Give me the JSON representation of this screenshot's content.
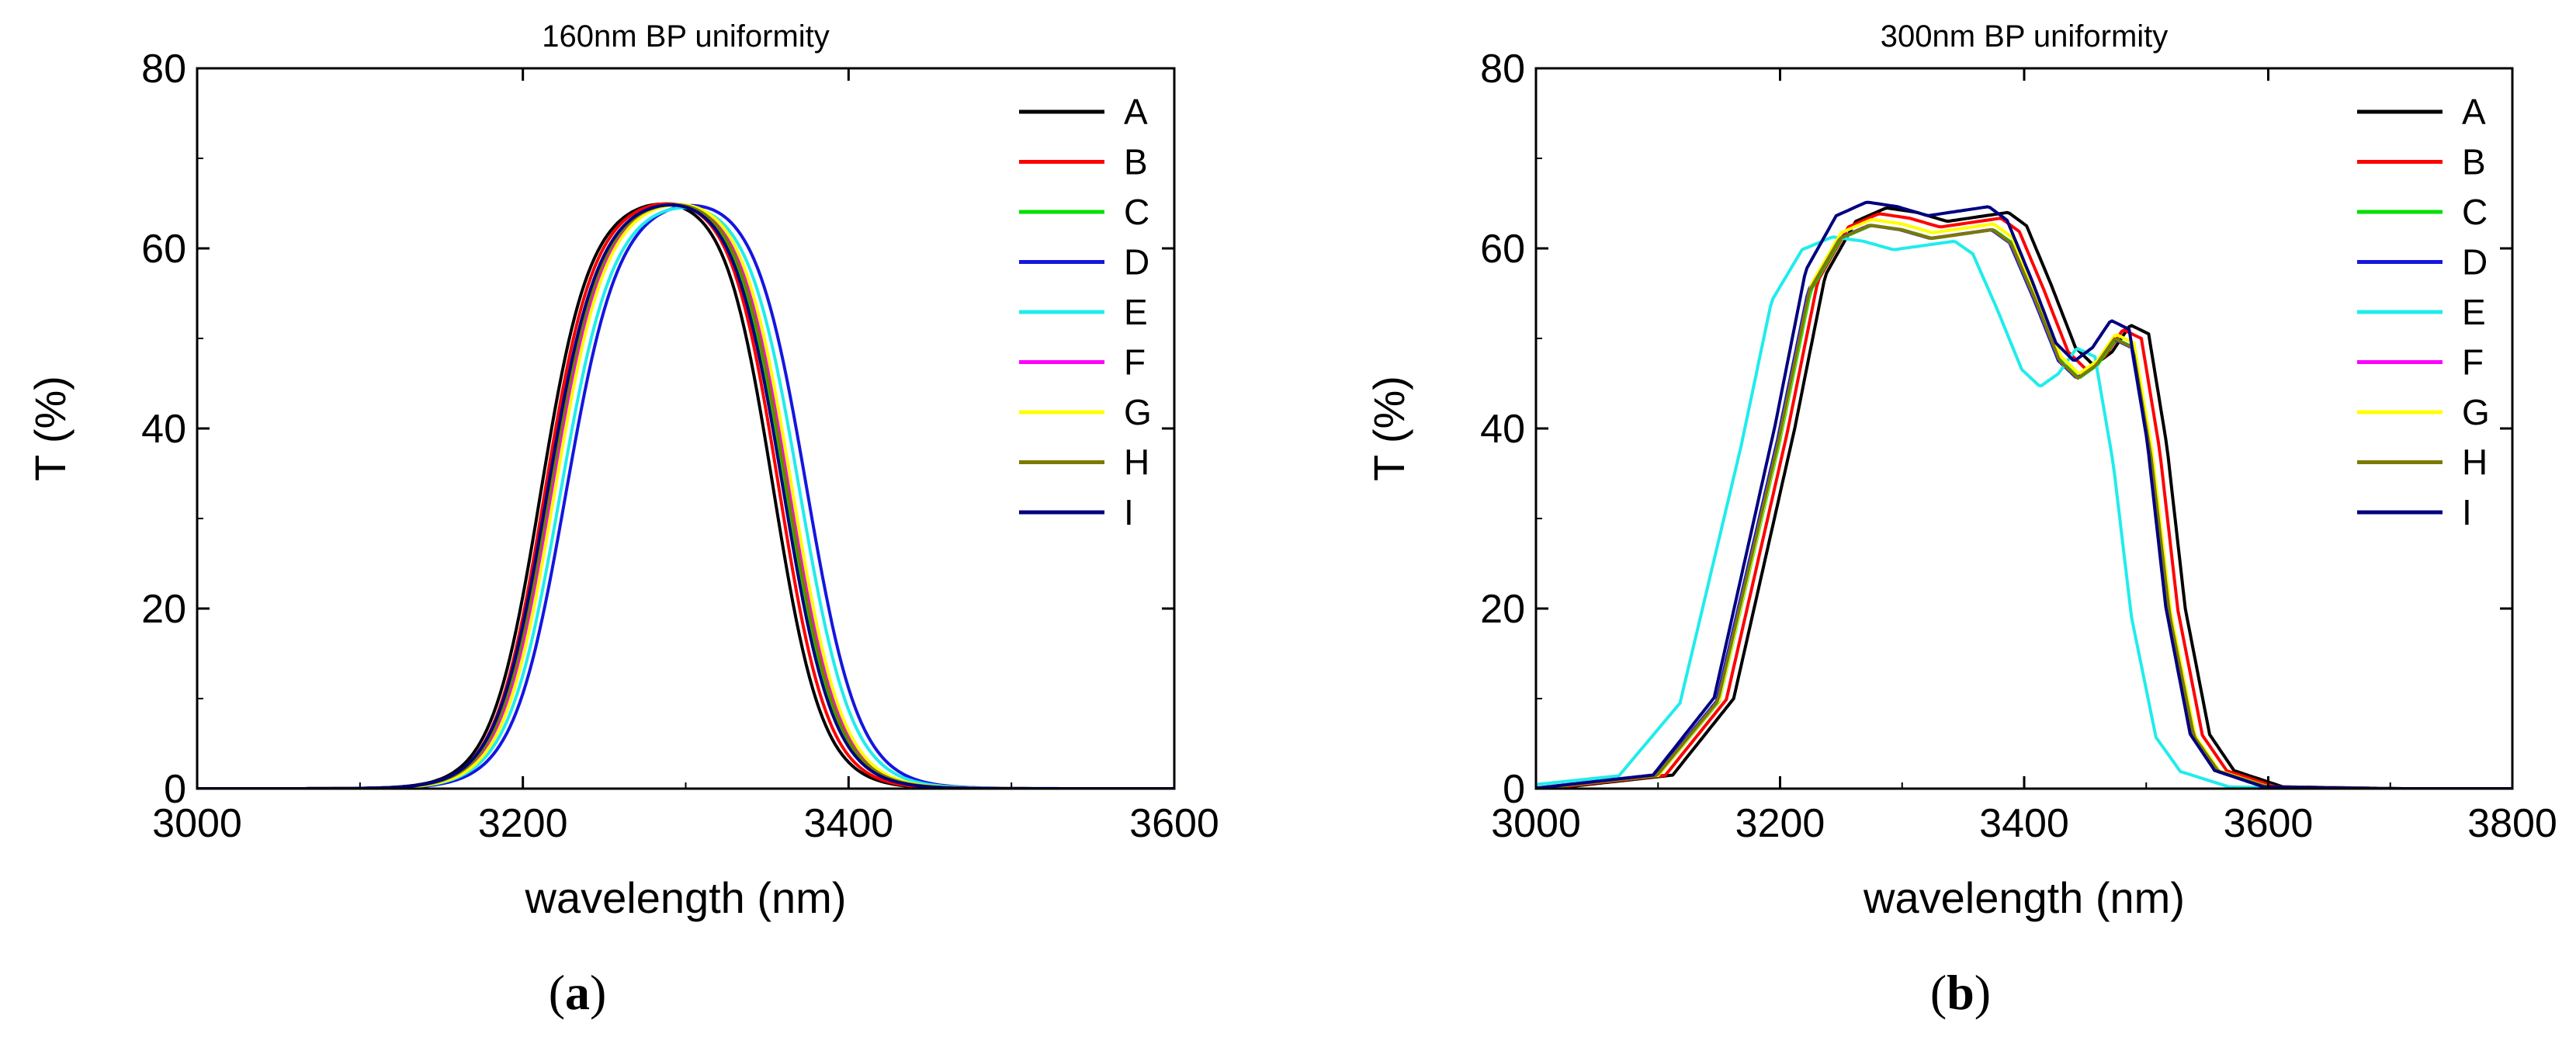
{
  "series_colors": {
    "A": "#000000",
    "B": "#ff0000",
    "C": "#00e000",
    "D": "#1515e0",
    "E": "#20ecec",
    "F": "#ff00ff",
    "G": "#ffff00",
    "H": "#7a7a00",
    "I": "#000080"
  },
  "chart_data": [
    {
      "type": "line",
      "title": "160nm BP uniformity",
      "caption": "(a)",
      "caption_letter": "a",
      "xlabel": "wavelength (nm)",
      "ylabel": "T (%)",
      "xlim": [
        3000,
        3600
      ],
      "ylim": [
        0,
        80
      ],
      "xticks": [
        3000,
        3200,
        3400,
        3600
      ],
      "yticks": [
        0,
        20,
        40,
        60,
        80
      ],
      "legend_position": "top-right",
      "series": [
        {
          "name": "A",
          "profile": "flat",
          "center": 3282,
          "width": 143,
          "edge": 15,
          "plateau": 66,
          "tilt": 0.04
        },
        {
          "name": "B",
          "profile": "flat",
          "center": 3285,
          "width": 144,
          "edge": 15,
          "plateau": 66,
          "tilt": 0.04
        },
        {
          "name": "C",
          "profile": "flat",
          "center": 3288,
          "width": 146,
          "edge": 15.5,
          "plateau": 66,
          "tilt": 0.04
        },
        {
          "name": "D",
          "profile": "flat",
          "center": 3300,
          "width": 148,
          "edge": 16,
          "plateau": 66,
          "tilt": 0.04
        },
        {
          "name": "E",
          "profile": "flat",
          "center": 3296,
          "width": 147,
          "edge": 16,
          "plateau": 65.8,
          "tilt": 0.04
        },
        {
          "name": "F",
          "profile": "flat",
          "center": 3290,
          "width": 146,
          "edge": 15.5,
          "plateau": 66,
          "tilt": 0.04
        },
        {
          "name": "G",
          "profile": "flat",
          "center": 3292,
          "width": 146,
          "edge": 15.5,
          "plateau": 66,
          "tilt": 0.04
        },
        {
          "name": "H",
          "profile": "flat",
          "center": 3289,
          "width": 146,
          "edge": 15.5,
          "plateau": 66,
          "tilt": 0.04
        },
        {
          "name": "I",
          "profile": "flat",
          "center": 3287,
          "width": 145,
          "edge": 15.5,
          "plateau": 66,
          "tilt": 0.04
        }
      ]
    },
    {
      "type": "line",
      "title": "300nm BP uniformity",
      "caption": "(b)",
      "caption_letter": "b",
      "xlabel": "wavelength (nm)",
      "ylabel": "T (%)",
      "xlim": [
        3000,
        3800
      ],
      "ylim": [
        0,
        80
      ],
      "xticks": [
        3000,
        3200,
        3400,
        3600,
        3800
      ],
      "yticks": [
        0,
        20,
        40,
        60,
        80
      ],
      "legend_position": "top-right",
      "series": [
        {
          "name": "A",
          "profile": "ripple",
          "shift": 12,
          "scale": 1.0
        },
        {
          "name": "B",
          "profile": "ripple",
          "shift": 6,
          "scale": 0.99
        },
        {
          "name": "C",
          "profile": "ripple",
          "shift": 0,
          "scale": 0.97
        },
        {
          "name": "D",
          "profile": "ripple",
          "shift": -2,
          "scale": 0.97
        },
        {
          "name": "E",
          "profile": "ripple",
          "shift": -32,
          "scale": 0.95
        },
        {
          "name": "F",
          "profile": "ripple",
          "shift": -1,
          "scale": 0.97
        },
        {
          "name": "G",
          "profile": "ripple",
          "shift": 0,
          "scale": 0.98
        },
        {
          "name": "H",
          "profile": "ripple",
          "shift": -1,
          "scale": 0.97
        },
        {
          "name": "I",
          "profile": "ripple",
          "shift": -4,
          "scale": 1.01
        }
      ],
      "ripple_reference": {
        "x": [
          3000,
          3100,
          3150,
          3200,
          3225,
          3250,
          3275,
          3300,
          3325,
          3350,
          3375,
          3390,
          3410,
          3430,
          3445,
          3460,
          3475,
          3490,
          3505,
          3520,
          3540,
          3560,
          3600,
          3700,
          3800
        ],
        "y": [
          0,
          1.5,
          10,
          40,
          57,
          63,
          64.5,
          64,
          63,
          63.5,
          64,
          62.5,
          56,
          49,
          47,
          48.5,
          51.5,
          50.5,
          38,
          20,
          6,
          2,
          0.2,
          0,
          0
        ]
      }
    }
  ]
}
